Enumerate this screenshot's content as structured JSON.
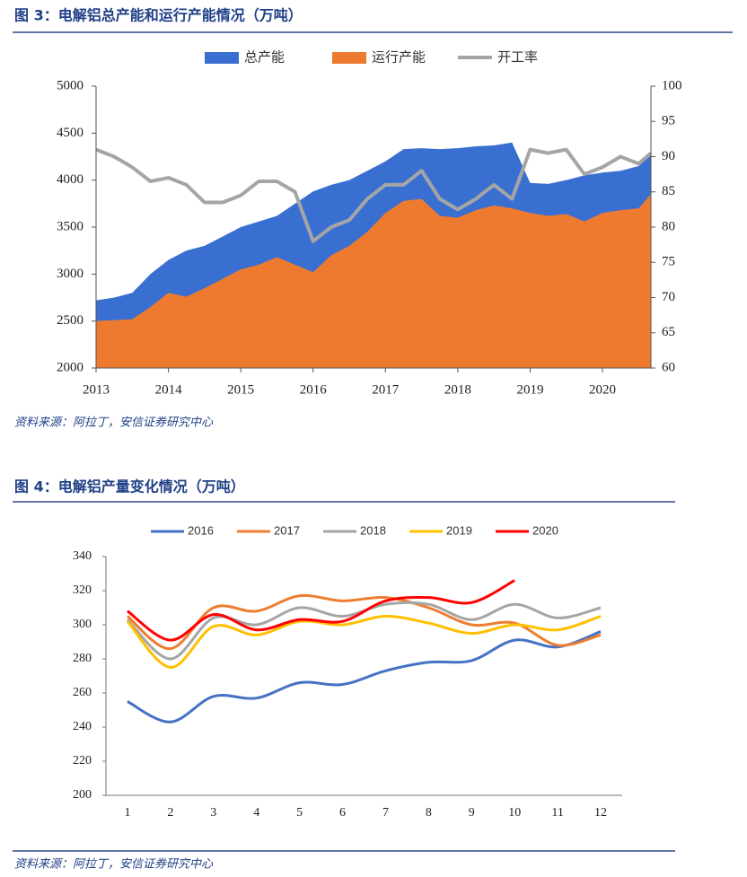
{
  "chart_data": [
    {
      "type": "area",
      "title": "图 3：电解铝总产能和运行产能情况（万吨）",
      "source": "资料来源：阿拉丁，安信证券研究中心",
      "x": [
        2013,
        2013.25,
        2013.5,
        2013.75,
        2014,
        2014.25,
        2014.5,
        2014.75,
        2015,
        2015.25,
        2015.5,
        2015.75,
        2016,
        2016.25,
        2016.5,
        2016.75,
        2017,
        2017.25,
        2017.5,
        2017.75,
        2018,
        2018.25,
        2018.5,
        2018.75,
        2019,
        2019.25,
        2019.5,
        2019.75,
        2020,
        2020.25,
        2020.5,
        2020.67
      ],
      "xlim": [
        2013,
        2020.67
      ],
      "xticks": [
        2013,
        2014,
        2015,
        2016,
        2017,
        2018,
        2019,
        2020
      ],
      "ylim": [
        2000,
        5000
      ],
      "yticks": [
        2000,
        2500,
        3000,
        3500,
        4000,
        4500,
        5000
      ],
      "y2lim": [
        60,
        100
      ],
      "y2ticks": [
        60,
        65,
        70,
        75,
        80,
        85,
        90,
        95,
        100
      ],
      "series": [
        {
          "name": "总产能",
          "color": "#3a6fd2",
          "values": [
            2720,
            2750,
            2800,
            3000,
            3150,
            3250,
            3300,
            3400,
            3500,
            3560,
            3620,
            3750,
            3880,
            3950,
            4000,
            4100,
            4200,
            4330,
            4340,
            4330,
            4340,
            4360,
            4370,
            4400,
            3970,
            3960,
            4000,
            4050,
            4080,
            4100,
            4150,
            4270
          ]
        },
        {
          "name": "运行产能",
          "color": "#ee7a30",
          "values": [
            2500,
            2510,
            2520,
            2650,
            2800,
            2760,
            2850,
            2950,
            3050,
            3100,
            3180,
            3100,
            3020,
            3200,
            3300,
            3450,
            3650,
            3780,
            3800,
            3620,
            3600,
            3680,
            3730,
            3700,
            3650,
            3620,
            3640,
            3560,
            3650,
            3680,
            3700,
            3850
          ]
        },
        {
          "name": "开工率",
          "color": "#a5a5a5",
          "type": "line",
          "axis": "y2",
          "values": [
            91,
            90,
            88.5,
            86.5,
            87,
            86,
            83.5,
            83.5,
            84.5,
            86.5,
            86.5,
            85,
            78,
            80,
            81,
            84,
            86,
            86,
            88,
            84,
            82.5,
            84,
            86,
            84,
            91,
            90.5,
            91,
            87.5,
            88.5,
            90,
            89,
            90.5
          ]
        }
      ]
    },
    {
      "type": "line",
      "title": "图 4：电解铝产量变化情况（万吨）",
      "source": "资料来源：阿拉丁，安信证券研究中心",
      "categories": [
        "1",
        "2",
        "3",
        "4",
        "5",
        "6",
        "7",
        "8",
        "9",
        "10",
        "11",
        "12"
      ],
      "ylim": [
        200,
        340
      ],
      "yticks": [
        200,
        220,
        240,
        260,
        280,
        300,
        320,
        340
      ],
      "series": [
        {
          "name": "2016",
          "color": "#4472c4",
          "values": [
            255,
            243,
            258,
            257,
            266,
            265,
            273,
            278,
            279,
            291,
            287,
            296
          ]
        },
        {
          "name": "2017",
          "color": "#ed7d31",
          "values": [
            305,
            286,
            310,
            308,
            317,
            314,
            316,
            310,
            300,
            301,
            288,
            294
          ]
        },
        {
          "name": "2018",
          "color": "#a5a5a5",
          "values": [
            303,
            280,
            304,
            300,
            310,
            305,
            312,
            312,
            303,
            312,
            304,
            310
          ]
        },
        {
          "name": "2019",
          "color": "#ffc000",
          "values": [
            302,
            275,
            299,
            294,
            302,
            300,
            305,
            301,
            295,
            300,
            297,
            305
          ]
        },
        {
          "name": "2020",
          "color": "#ff0000",
          "values": [
            308,
            291,
            306,
            297,
            303,
            302,
            314,
            316,
            313,
            326,
            null,
            null
          ]
        }
      ]
    }
  ]
}
